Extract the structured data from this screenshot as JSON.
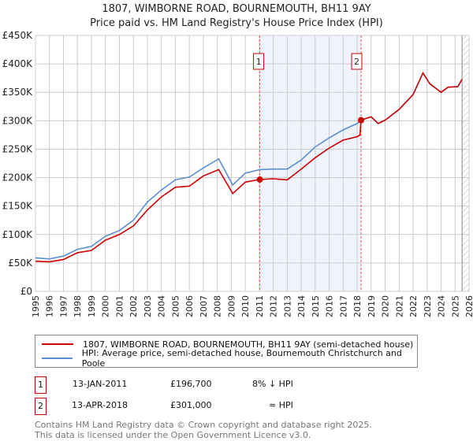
{
  "title": "1807, WIMBORNE ROAD, BOURNEMOUTH, BH11 9AY",
  "subtitle": "Price paid vs. HM Land Registry's House Price Index (HPI)",
  "chart_data": {
    "type": "line",
    "xlim": [
      1995,
      2026
    ],
    "ylim": [
      0,
      450000
    ],
    "yticks": [
      {
        "v": 0,
        "label": "£0"
      },
      {
        "v": 50000,
        "label": "£50K"
      },
      {
        "v": 100000,
        "label": "£100K"
      },
      {
        "v": 150000,
        "label": "£150K"
      },
      {
        "v": 200000,
        "label": "£200K"
      },
      {
        "v": 250000,
        "label": "£250K"
      },
      {
        "v": 300000,
        "label": "£300K"
      },
      {
        "v": 350000,
        "label": "£350K"
      },
      {
        "v": 400000,
        "label": "£400K"
      },
      {
        "v": 450000,
        "label": "£450K"
      }
    ],
    "xticks": [
      "1995",
      "1996",
      "1997",
      "1998",
      "1999",
      "2000",
      "2001",
      "2002",
      "2003",
      "2004",
      "2005",
      "2006",
      "2007",
      "2008",
      "2009",
      "2010",
      "2011",
      "2012",
      "2013",
      "2014",
      "2015",
      "2016",
      "2017",
      "2018",
      "2019",
      "2020",
      "2021",
      "2022",
      "2023",
      "2024",
      "2025",
      "2026"
    ],
    "grid": true,
    "shaded_period": [
      2011.04,
      2018.28
    ],
    "forecast_hatch_from": 2025.5,
    "series": [
      {
        "name": "1807, WIMBORNE ROAD, BOURNEMOUTH, BH11 9AY (semi-detached house)",
        "color": "#cc0000",
        "x": [
          1995,
          1996,
          1997,
          1998,
          1999,
          2000,
          2001,
          2002,
          2003,
          2004,
          2005,
          2006,
          2007,
          2008.1,
          2009.1,
          2010,
          2011.04,
          2012,
          2013,
          2014,
          2015,
          2016,
          2017,
          2018,
          2018.2,
          2018.28,
          2019,
          2019.5,
          2020,
          2021,
          2022,
          2022.7,
          2023.2,
          2024,
          2024.5,
          2025.2,
          2025.5
        ],
        "y": [
          53000,
          52000,
          56000,
          68000,
          72000,
          90000,
          100000,
          115000,
          143000,
          166000,
          183000,
          185000,
          203000,
          214000,
          172000,
          192000,
          196700,
          198000,
          196000,
          215000,
          235000,
          252000,
          266000,
          272000,
          275000,
          301000,
          307000,
          295000,
          301000,
          320000,
          346000,
          384000,
          365000,
          350000,
          359000,
          360000,
          373000
        ]
      },
      {
        "name": "HPI: Average price, semi-detached house, Bournemouth Christchurch and Poole",
        "color": "#5b8fd0",
        "x": [
          1995,
          1996,
          1997,
          1998,
          1999,
          2000,
          2001,
          2002,
          2003,
          2004,
          2005,
          2006,
          2007,
          2008.1,
          2009.1,
          2010,
          2011.04,
          2012,
          2013,
          2014,
          2015,
          2016,
          2017,
          2018,
          2018.28,
          2019,
          2019.5,
          2020,
          2021,
          2022,
          2022.7,
          2023.2,
          2024,
          2024.5,
          2025.2,
          2025.5
        ],
        "y": [
          59000,
          57000,
          62000,
          74000,
          79000,
          97000,
          107000,
          125000,
          157000,
          178000,
          196000,
          201000,
          217000,
          233000,
          187000,
          208000,
          214000,
          215000,
          215000,
          231000,
          254000,
          270000,
          284000,
          295000,
          301000,
          307000,
          295000,
          301000,
          320000,
          346000,
          384000,
          365000,
          350000,
          359000,
          360000,
          373000
        ]
      }
    ],
    "markers": [
      {
        "label": "1",
        "x": 2011.04,
        "y": 196700
      },
      {
        "label": "2",
        "x": 2018.28,
        "y": 301000
      }
    ]
  },
  "legend": {
    "red": "1807, WIMBORNE ROAD, BOURNEMOUTH, BH11 9AY (semi-detached house)",
    "blue": "HPI: Average price, semi-detached house, Bournemouth Christchurch and Poole"
  },
  "transactions": [
    {
      "num": "1",
      "date": "13-JAN-2011",
      "price": "£196,700",
      "hpi": "8% ↓ HPI"
    },
    {
      "num": "2",
      "date": "13-APR-2018",
      "price": "£301,000",
      "hpi": "≈ HPI"
    }
  ],
  "footer": [
    "Contains HM Land Registry data © Crown copyright and database right 2025.",
    "This data is licensed under the Open Government Licence v3.0."
  ]
}
